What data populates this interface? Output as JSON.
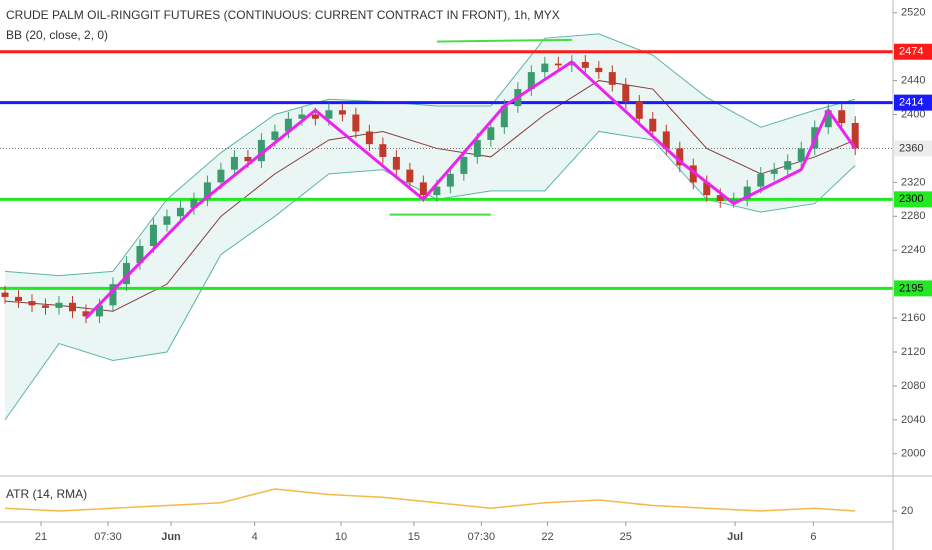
{
  "chart_data": {
    "type": "candlestick",
    "title": "CRUDE PALM OIL-RINGGIT FUTURES (CONTINUOUS: CURRENT CONTRACT IN FRONT), 1h, MYX",
    "indicator_label": "BB (20, close, 2, 0)",
    "up_color": "#3c9b6e",
    "down_color": "#c0392b",
    "open": [
      2190,
      2185,
      2180,
      2175,
      2172,
      2178,
      2168,
      2162,
      2175,
      2200,
      2225,
      2245,
      2270,
      2280,
      2290,
      2300,
      2320,
      2335,
      2350,
      2345,
      2370,
      2380,
      2395,
      2400,
      2395,
      2405,
      2400,
      2380,
      2365,
      2350,
      2335,
      2320,
      2305,
      2315,
      2330,
      2350,
      2370,
      2385,
      2410,
      2430,
      2450,
      2460,
      2458,
      2462,
      2455,
      2450,
      2435,
      2415,
      2395,
      2380,
      2360,
      2340,
      2320,
      2305,
      2298,
      2300,
      2315,
      2330,
      2335,
      2345,
      2360,
      2385,
      2405,
      2390
    ],
    "high": [
      2198,
      2193,
      2188,
      2183,
      2186,
      2186,
      2176,
      2183,
      2208,
      2233,
      2253,
      2278,
      2288,
      2298,
      2308,
      2328,
      2343,
      2358,
      2358,
      2378,
      2388,
      2403,
      2408,
      2408,
      2413,
      2413,
      2408,
      2388,
      2373,
      2358,
      2343,
      2328,
      2323,
      2338,
      2358,
      2378,
      2393,
      2418,
      2438,
      2458,
      2468,
      2468,
      2470,
      2470,
      2463,
      2458,
      2443,
      2423,
      2403,
      2388,
      2368,
      2348,
      2328,
      2313,
      2308,
      2323,
      2338,
      2343,
      2353,
      2368,
      2393,
      2413,
      2413,
      2398
    ],
    "low": [
      2177,
      2172,
      2167,
      2164,
      2164,
      2160,
      2154,
      2154,
      2167,
      2192,
      2217,
      2237,
      2262,
      2272,
      2282,
      2292,
      2312,
      2327,
      2337,
      2337,
      2362,
      2372,
      2387,
      2387,
      2387,
      2392,
      2372,
      2357,
      2342,
      2327,
      2312,
      2297,
      2297,
      2307,
      2322,
      2342,
      2362,
      2377,
      2402,
      2422,
      2442,
      2450,
      2450,
      2447,
      2442,
      2427,
      2407,
      2387,
      2372,
      2352,
      2332,
      2312,
      2297,
      2290,
      2290,
      2292,
      2307,
      2322,
      2327,
      2337,
      2352,
      2377,
      2382,
      2352
    ],
    "close": [
      2185,
      2180,
      2175,
      2172,
      2178,
      2168,
      2162,
      2175,
      2200,
      2225,
      2245,
      2270,
      2280,
      2290,
      2300,
      2320,
      2335,
      2350,
      2345,
      2370,
      2380,
      2395,
      2400,
      2395,
      2405,
      2400,
      2380,
      2365,
      2350,
      2335,
      2320,
      2305,
      2315,
      2330,
      2350,
      2370,
      2385,
      2410,
      2430,
      2450,
      2460,
      2458,
      2462,
      2455,
      2450,
      2435,
      2415,
      2395,
      2380,
      2360,
      2340,
      2320,
      2305,
      2298,
      2300,
      2315,
      2330,
      2335,
      2345,
      2360,
      2385,
      2405,
      2390,
      2360
    ],
    "bands": {
      "x": [
        0,
        4,
        8,
        12,
        16,
        20,
        24,
        28,
        32,
        36,
        40,
        44,
        48,
        52,
        56,
        60,
        63
      ],
      "upper": [
        2215,
        2210,
        2215,
        2300,
        2355,
        2400,
        2418,
        2415,
        2410,
        2410,
        2490,
        2495,
        2470,
        2420,
        2385,
        2405,
        2418
      ],
      "middle": [
        2180,
        2175,
        2168,
        2200,
        2280,
        2330,
        2370,
        2380,
        2360,
        2350,
        2400,
        2440,
        2430,
        2360,
        2330,
        2350,
        2370
      ],
      "lower": [
        2040,
        2130,
        2110,
        2120,
        2235,
        2280,
        2330,
        2335,
        2300,
        2310,
        2310,
        2380,
        2370,
        2300,
        2285,
        2295,
        2340
      ]
    },
    "atr": {
      "label": "ATR (14, RMA)",
      "x": [
        0,
        4,
        8,
        12,
        16,
        20,
        24,
        28,
        32,
        36,
        40,
        44,
        48,
        52,
        56,
        60,
        63
      ],
      "values": [
        21,
        20,
        21,
        22,
        23,
        28,
        26,
        25,
        23,
        21,
        23,
        24,
        22,
        21,
        20,
        21,
        20
      ],
      "color": "#f5b94a",
      "y2lim": [
        16,
        32
      ],
      "y2ticks": [
        20
      ]
    },
    "levels": [
      {
        "value": 2474,
        "color": "#ff1a1a"
      },
      {
        "value": 2414,
        "color": "#1a1aff"
      },
      {
        "value": 2300,
        "color": "#22e822"
      },
      {
        "value": 2195,
        "color": "#22e822"
      }
    ],
    "current_price": 2360,
    "drawings": [
      {
        "color": "#ee22ee",
        "points": [
          [
            6,
            2160
          ],
          [
            14,
            2290
          ],
          [
            23,
            2405
          ],
          [
            31,
            2300
          ],
          [
            37,
            2410
          ],
          [
            42,
            2462
          ],
          [
            50,
            2345
          ],
          [
            54,
            2295
          ],
          [
            59,
            2335
          ],
          [
            61,
            2405
          ],
          [
            63,
            2360
          ]
        ]
      },
      {
        "color": "#44dd44",
        "points": [
          [
            28.5,
            2282
          ],
          [
            36,
            2282
          ]
        ]
      },
      {
        "color": "#44dd44",
        "points": [
          [
            32,
            2486
          ],
          [
            42,
            2488
          ]
        ]
      }
    ],
    "xlim": [
      -0.37,
      65.8
    ],
    "ylim": [
      1975,
      2535
    ],
    "yticks": [
      2520,
      2440,
      2400,
      2320,
      2280,
      2240,
      2160,
      2120,
      2080,
      2040,
      2000
    ],
    "xticks": [
      {
        "value": 2.67,
        "label": "21"
      },
      {
        "value": 7.63,
        "label": "07:30"
      },
      {
        "value": 12.3,
        "label": "Jun"
      },
      {
        "value": 18.5,
        "label": "4"
      },
      {
        "value": 24.9,
        "label": "10"
      },
      {
        "value": 30.3,
        "label": "15"
      },
      {
        "value": 35.3,
        "label": "07:30"
      },
      {
        "value": 40.2,
        "label": "22"
      },
      {
        "value": 46,
        "label": "25"
      },
      {
        "value": 54.1,
        "label": "Jul"
      },
      {
        "value": 59.9,
        "label": "6"
      }
    ]
  }
}
